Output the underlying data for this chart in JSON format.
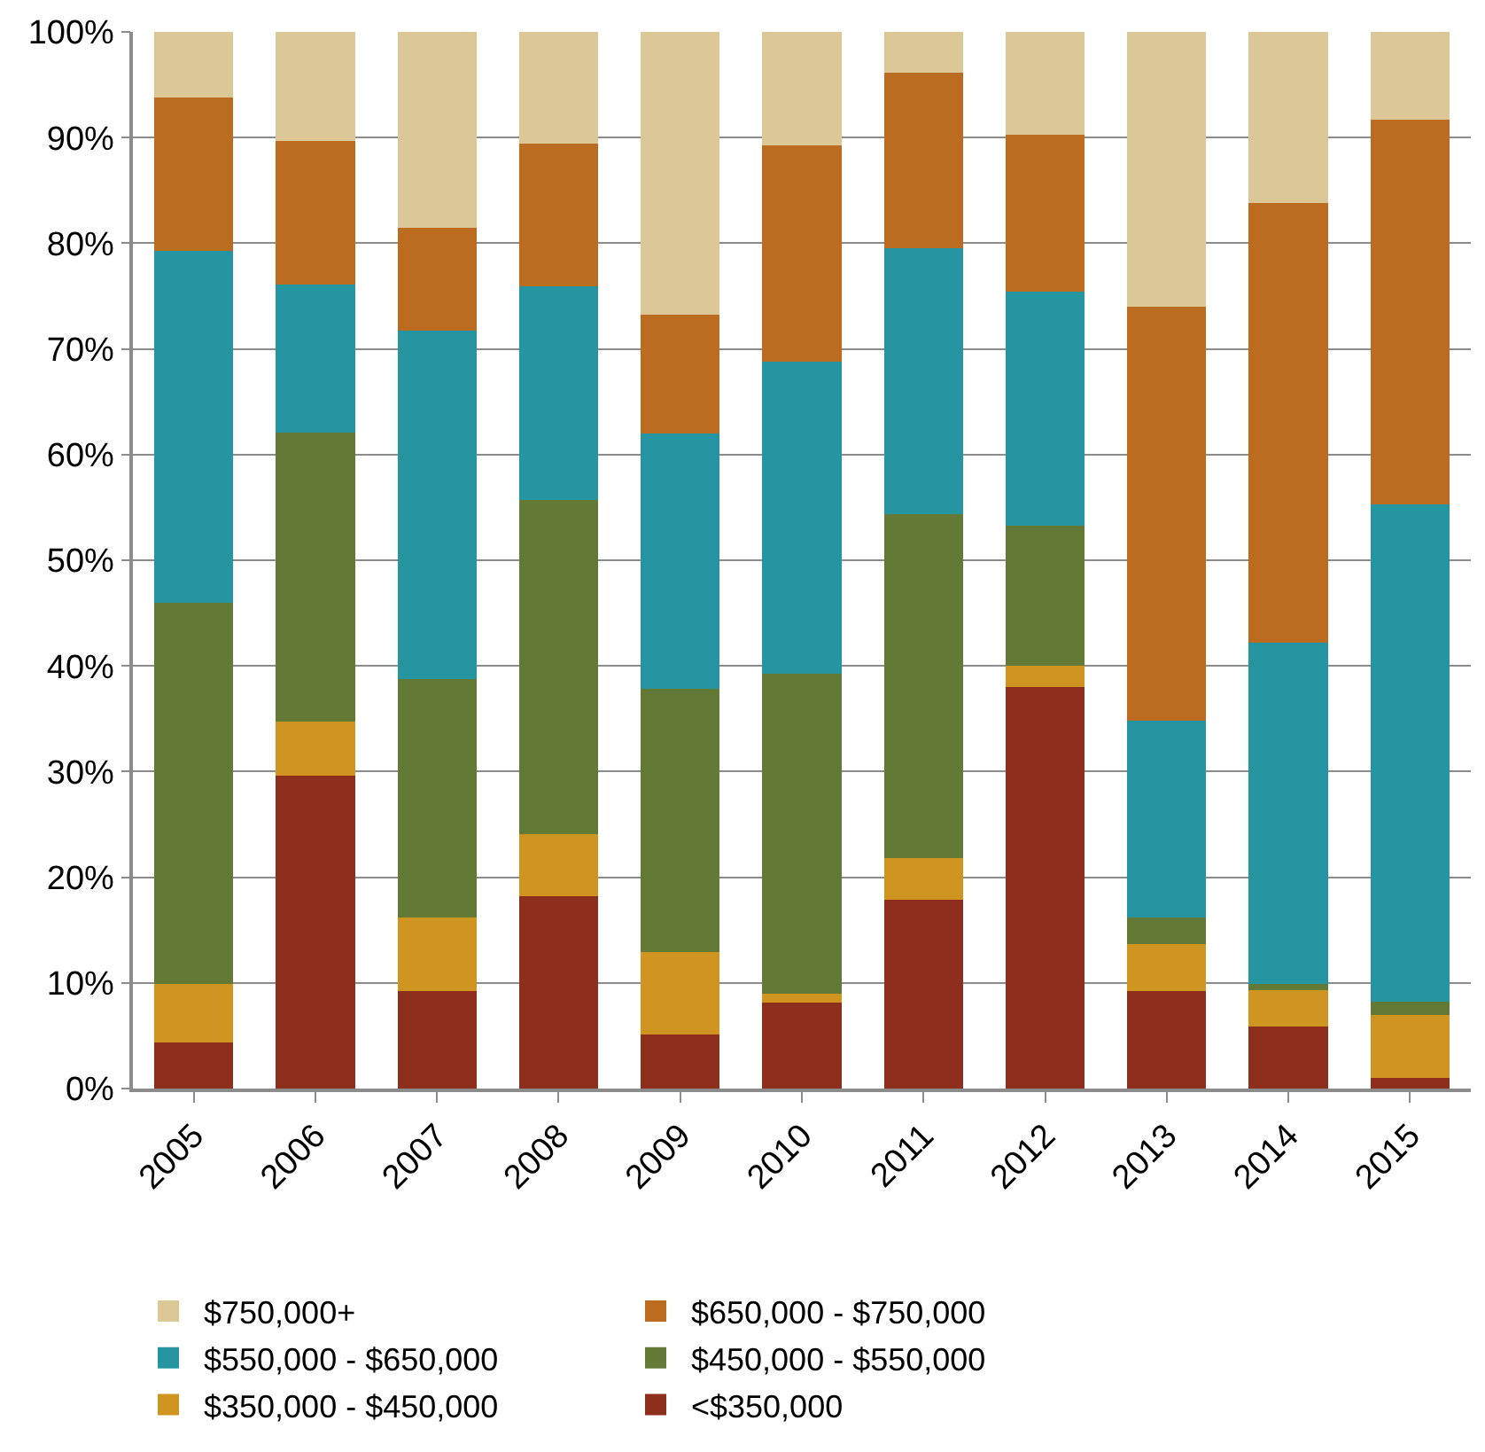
{
  "chart_data": {
    "type": "bar",
    "stacked": true,
    "categories": [
      "2005",
      "2006",
      "2007",
      "2008",
      "2009",
      "2010",
      "2011",
      "2012",
      "2013",
      "2014",
      "2015"
    ],
    "series": [
      {
        "name": "<$350,000",
        "color": "#8e2f1e",
        "values": [
          4.4,
          29.6,
          9.2,
          18.2,
          5.1,
          8.1,
          17.9,
          38.0,
          9.2,
          5.9,
          1.0
        ]
      },
      {
        "name": "$350,000 - $450,000",
        "color": "#cf9520",
        "values": [
          5.5,
          5.1,
          7.0,
          5.9,
          7.8,
          0.9,
          3.9,
          2.0,
          4.5,
          3.4,
          6.0
        ]
      },
      {
        "name": "$450,000 - $550,000",
        "color": "#627a36",
        "values": [
          36.1,
          27.4,
          22.6,
          31.6,
          24.9,
          30.3,
          32.6,
          13.3,
          2.5,
          0.6,
          1.2
        ]
      },
      {
        "name": "$550,000 - $650,000",
        "color": "#2596a1",
        "values": [
          33.3,
          14.0,
          32.9,
          20.2,
          24.2,
          29.5,
          25.1,
          22.1,
          18.6,
          32.3,
          47.1
        ]
      },
      {
        "name": "$650,000 - $750,000",
        "color": "#bc6c21",
        "values": [
          14.5,
          13.6,
          9.8,
          13.5,
          11.2,
          20.5,
          16.6,
          14.9,
          39.2,
          41.6,
          36.4
        ]
      },
      {
        "name": "$750,000+",
        "color": "#dcc796",
        "values": [
          6.2,
          10.3,
          18.5,
          10.6,
          26.8,
          10.7,
          3.9,
          9.7,
          26.0,
          16.2,
          8.3
        ]
      }
    ],
    "ylim": [
      0,
      100
    ],
    "yticks": [
      {
        "value": 0,
        "label": "0%"
      },
      {
        "value": 10,
        "label": "10%"
      },
      {
        "value": 20,
        "label": "20%"
      },
      {
        "value": 30,
        "label": "30%"
      },
      {
        "value": 40,
        "label": "40%"
      },
      {
        "value": 50,
        "label": "50%"
      },
      {
        "value": 60,
        "label": "60%"
      },
      {
        "value": 70,
        "label": "70%"
      },
      {
        "value": 80,
        "label": "80%"
      },
      {
        "value": 90,
        "label": "90%"
      },
      {
        "value": 100,
        "label": "100%"
      }
    ],
    "grid": "y",
    "legend": "bottom"
  }
}
